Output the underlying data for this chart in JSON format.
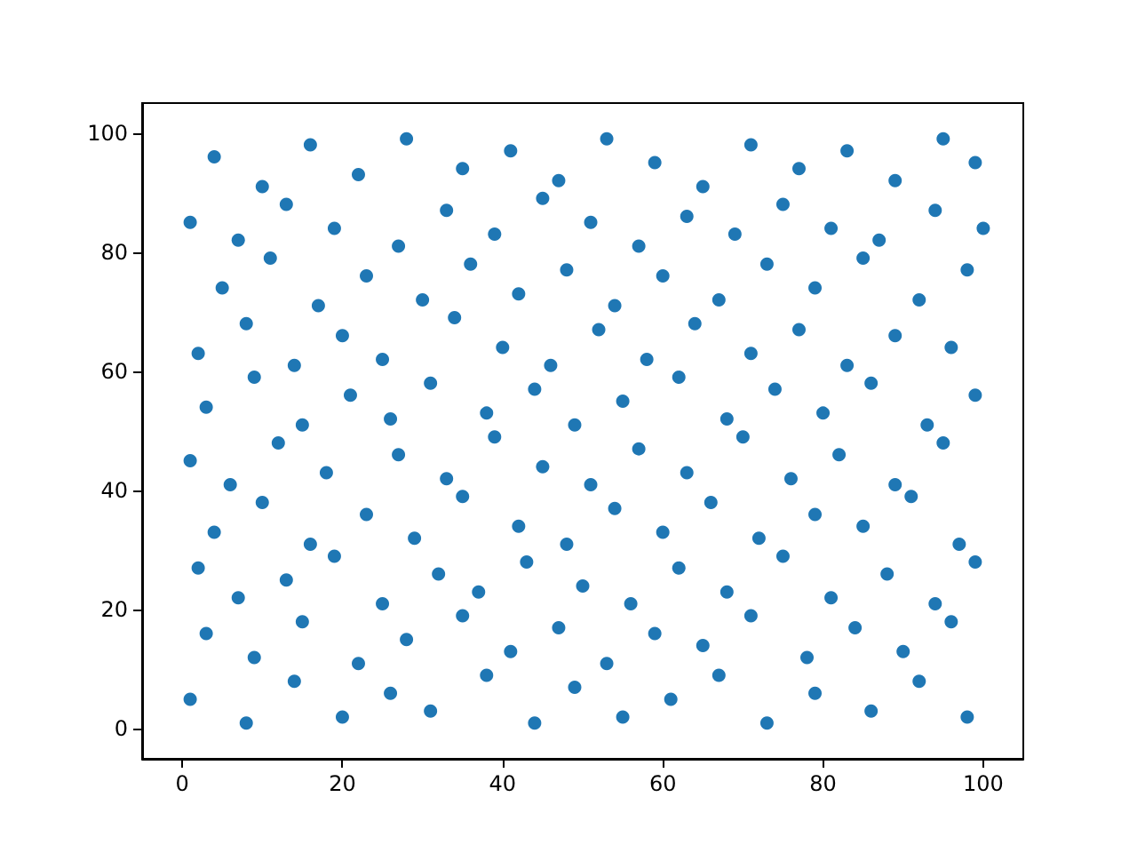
{
  "chart_data": {
    "type": "scatter",
    "marker": "circle",
    "xlim": [
      -5,
      105
    ],
    "ylim": [
      -5,
      105
    ],
    "xticks": [
      0,
      20,
      40,
      60,
      80,
      100
    ],
    "yticks": [
      0,
      20,
      40,
      60,
      80,
      100
    ],
    "series": [
      {
        "color": "#1f77b4",
        "x": [
          1,
          8,
          14,
          20,
          26,
          31,
          38,
          44,
          49,
          55,
          61,
          67,
          73,
          79,
          86,
          92,
          98,
          3,
          9,
          15,
          22,
          28,
          35,
          41,
          47,
          53,
          59,
          65,
          71,
          78,
          84,
          90,
          96,
          2,
          7,
          13,
          19,
          25,
          32,
          37,
          43,
          50,
          56,
          62,
          68,
          75,
          81,
          88,
          94,
          99,
          4,
          10,
          16,
          23,
          29,
          35,
          42,
          48,
          54,
          60,
          66,
          72,
          79,
          85,
          91,
          97,
          1,
          6,
          12,
          18,
          27,
          33,
          39,
          45,
          51,
          57,
          63,
          70,
          76,
          82,
          89,
          95,
          3,
          9,
          15,
          21,
          26,
          31,
          38,
          44,
          49,
          55,
          62,
          68,
          74,
          80,
          86,
          93,
          99,
          2,
          8,
          14,
          20,
          25,
          34,
          40,
          46,
          52,
          58,
          64,
          71,
          77,
          83,
          89,
          96,
          5,
          11,
          17,
          23,
          30,
          36,
          42,
          48,
          54,
          60,
          67,
          73,
          79,
          85,
          92,
          98,
          1,
          7,
          13,
          19,
          27,
          33,
          39,
          45,
          51,
          57,
          63,
          69,
          75,
          81,
          87,
          94,
          100,
          4,
          10,
          16,
          22,
          28,
          35,
          41,
          47,
          53,
          59,
          65,
          71,
          77,
          83,
          89,
          95,
          99
        ],
        "values": [
          5,
          1,
          8,
          2,
          6,
          3,
          9,
          1,
          7,
          2,
          5,
          9,
          1,
          6,
          3,
          8,
          2,
          16,
          12,
          18,
          11,
          15,
          19,
          13,
          17,
          11,
          16,
          14,
          19,
          12,
          17,
          13,
          18,
          27,
          22,
          25,
          29,
          21,
          26,
          23,
          28,
          24,
          21,
          27,
          23,
          29,
          22,
          26,
          21,
          28,
          33,
          38,
          31,
          36,
          32,
          39,
          34,
          31,
          37,
          33,
          38,
          32,
          36,
          34,
          39,
          31,
          45,
          41,
          48,
          43,
          46,
          42,
          49,
          44,
          41,
          47,
          43,
          49,
          42,
          46,
          41,
          48,
          54,
          59,
          51,
          56,
          52,
          58,
          53,
          57,
          51,
          55,
          59,
          52,
          57,
          53,
          58,
          51,
          56,
          63,
          68,
          61,
          66,
          62,
          69,
          64,
          61,
          67,
          62,
          68,
          63,
          67,
          61,
          66,
          64,
          74,
          79,
          71,
          76,
          72,
          78,
          73,
          77,
          71,
          76,
          72,
          78,
          74,
          79,
          72,
          77,
          85,
          82,
          88,
          84,
          81,
          87,
          83,
          89,
          85,
          81,
          86,
          83,
          88,
          84,
          82,
          87,
          84,
          96,
          91,
          98,
          93,
          99,
          94,
          97,
          92,
          99,
          95,
          91,
          98,
          94,
          97,
          92,
          99,
          95
        ]
      }
    ]
  }
}
